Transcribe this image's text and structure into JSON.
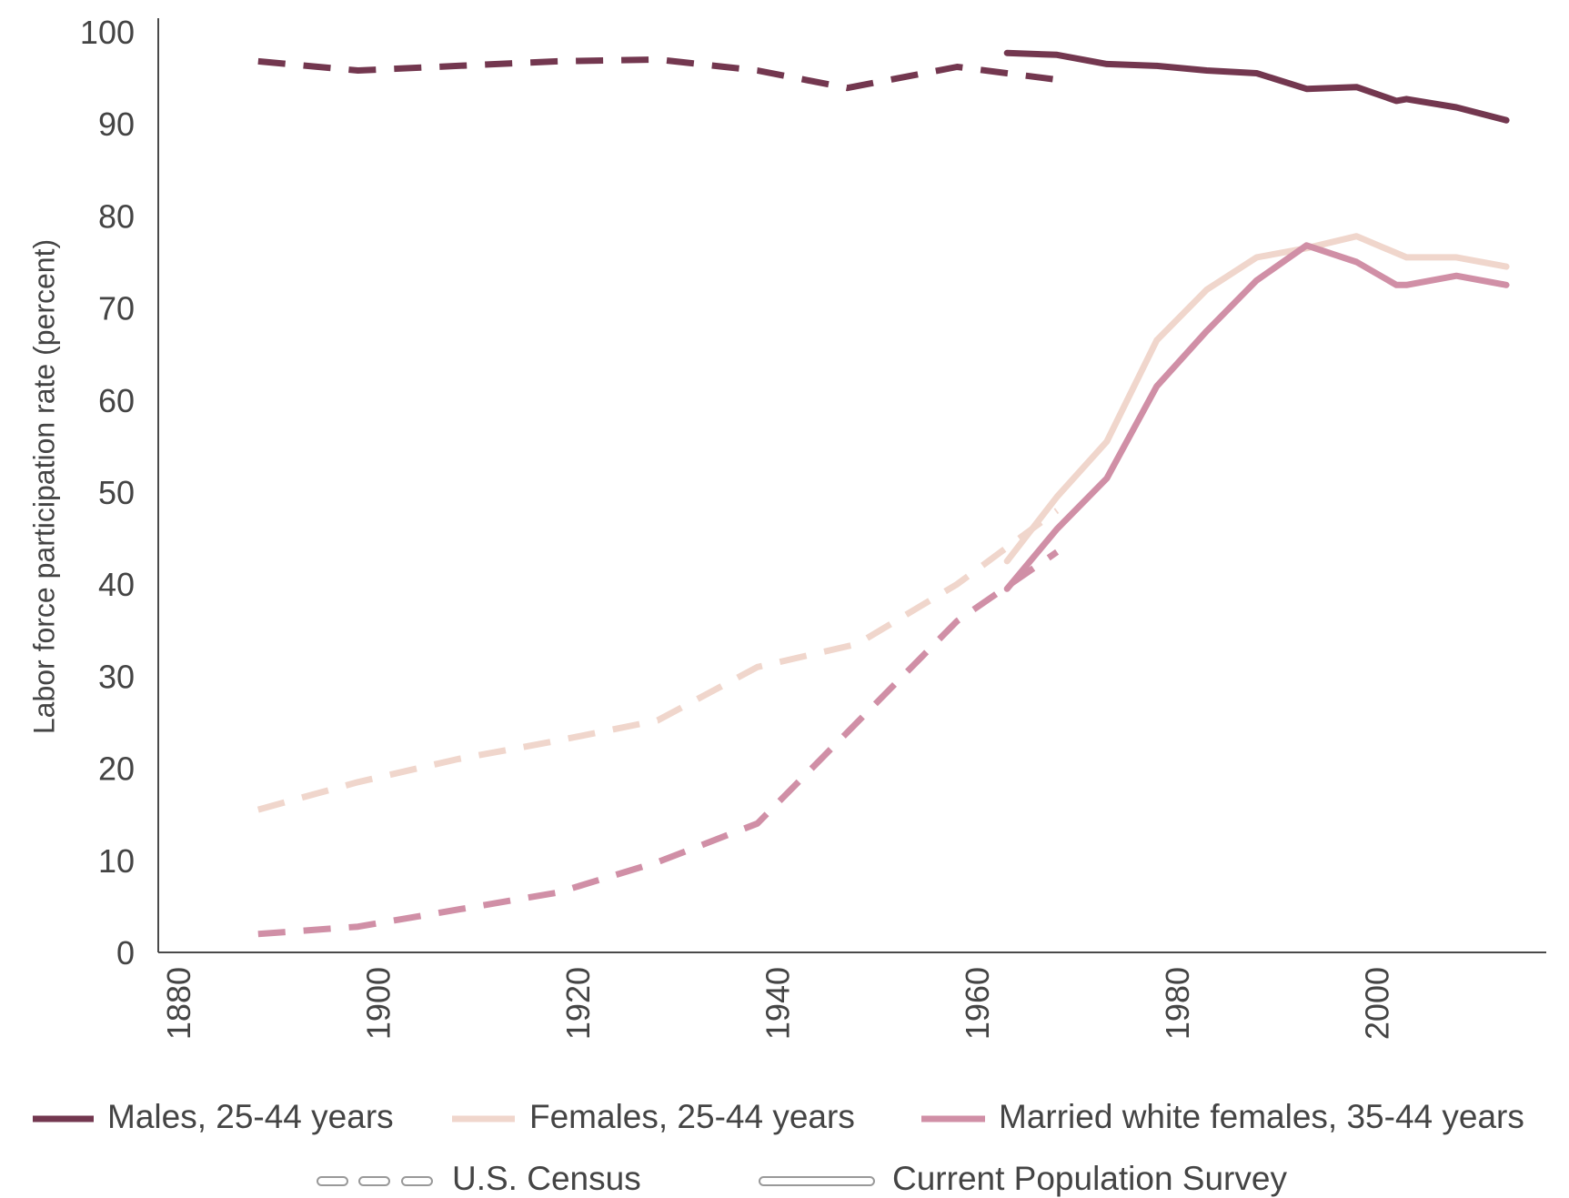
{
  "chart_data": {
    "type": "line",
    "title": "",
    "ylabel": "Labor force participation rate (percent)",
    "xlabel": "",
    "xlim": [
      1878,
      2017
    ],
    "ylim": [
      0,
      100
    ],
    "x_ticks": [
      1880,
      1900,
      1920,
      1940,
      1960,
      1980,
      2000
    ],
    "y_ticks": [
      0,
      10,
      20,
      30,
      40,
      50,
      60,
      70,
      80,
      90,
      100
    ],
    "series": [
      {
        "name": "Males, 25-44 years",
        "color": "#73374f",
        "source": "U.S. Census",
        "style": "dashed",
        "x": [
          1888,
          1898,
          1908,
          1918,
          1928,
          1938,
          1947,
          1958,
          1968
        ],
        "y": [
          96.8,
          95.8,
          96.3,
          96.8,
          97.0,
          95.8,
          93.9,
          96.2,
          94.8
        ]
      },
      {
        "name": "Males, 25-44 years",
        "color": "#73374f",
        "source": "Current Population Survey",
        "style": "solid",
        "x": [
          1963,
          1968,
          1973,
          1978,
          1983,
          1988,
          1993,
          1998,
          2002,
          2003,
          2008,
          2013
        ],
        "y": [
          97.7,
          97.5,
          96.5,
          96.3,
          95.8,
          95.5,
          93.8,
          94.0,
          92.5,
          92.7,
          91.8,
          90.4
        ]
      },
      {
        "name": "Females, 25-44 years",
        "color": "#f0d6cc",
        "source": "U.S. Census",
        "style": "dashed",
        "x": [
          1888,
          1898,
          1908,
          1918,
          1928,
          1938,
          1948,
          1958,
          1968
        ],
        "y": [
          15.5,
          18.5,
          21.0,
          23.0,
          25.2,
          31.0,
          33.5,
          40.0,
          48.0
        ]
      },
      {
        "name": "Females, 25-44 years",
        "color": "#f0d6cc",
        "source": "Current Population Survey",
        "style": "solid",
        "x": [
          1963,
          1968,
          1973,
          1978,
          1983,
          1988,
          1993,
          1998,
          2003,
          2008,
          2013
        ],
        "y": [
          42.5,
          49.5,
          55.5,
          66.5,
          72.0,
          75.5,
          76.5,
          77.8,
          75.5,
          75.5,
          74.5
        ]
      },
      {
        "name": "Married white females, 35-44 years",
        "color": "#d08fa6",
        "source": "U.S. Census",
        "style": "dashed",
        "x": [
          1888,
          1898,
          1918,
          1928,
          1938,
          1948,
          1958,
          1968
        ],
        "y": [
          2.0,
          2.8,
          6.5,
          9.8,
          14.0,
          25.0,
          36.0,
          43.5
        ]
      },
      {
        "name": "Married white females, 35-44 years",
        "color": "#d08fa6",
        "source": "Current Population Survey",
        "style": "solid",
        "x": [
          1963,
          1968,
          1973,
          1978,
          1983,
          1988,
          1993,
          1998,
          2002,
          2003,
          2008,
          2013
        ],
        "y": [
          39.5,
          46.0,
          51.5,
          61.5,
          67.5,
          73.0,
          76.8,
          75.0,
          72.5,
          72.5,
          73.5,
          72.5
        ]
      }
    ],
    "legend": {
      "placement": "bottom",
      "series_entries": [
        {
          "label": "Males, 25-44 years",
          "color": "#73374f"
        },
        {
          "label": "Females, 25-44 years",
          "color": "#f0d6cc"
        },
        {
          "label": "Married white females, 35-44 years",
          "color": "#d08fa6"
        }
      ],
      "style_entries": [
        {
          "label": "U.S. Census",
          "style": "dashed"
        },
        {
          "label": "Current Population Survey",
          "style": "solid"
        }
      ]
    },
    "axis_color": "#4a4a4a",
    "text_color": "#444444"
  }
}
